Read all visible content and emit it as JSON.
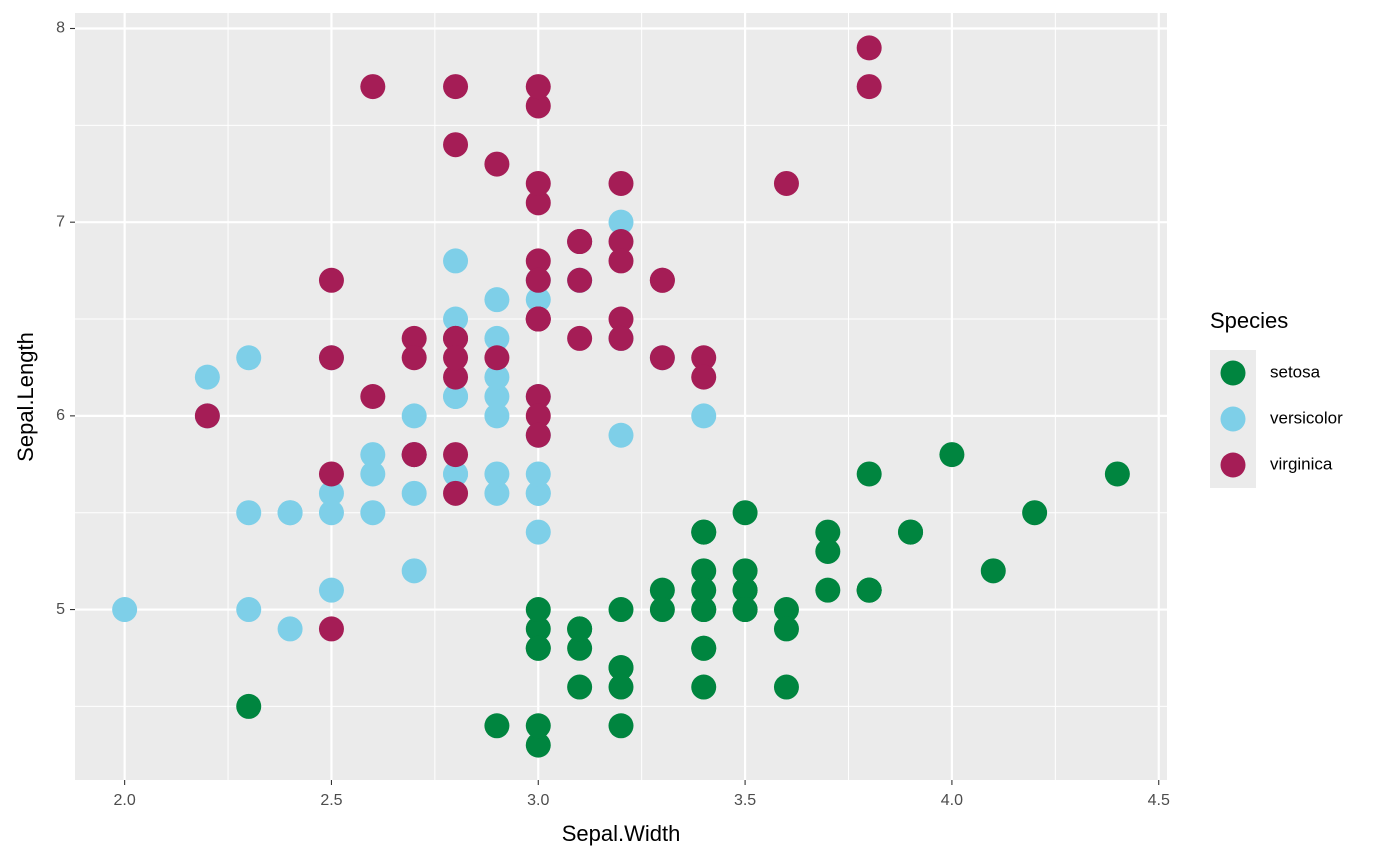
{
  "chart_data": {
    "type": "scatter",
    "x_label": "Sepal.Width",
    "y_label": "Sepal.Length",
    "legend_title": "Species",
    "xlim": [
      1.88,
      4.52
    ],
    "ylim": [
      4.12,
      8.08
    ],
    "xticks": [
      {
        "value": 2,
        "label": "2.0"
      },
      2.5,
      {
        "value": 3,
        "label": "3.0"
      },
      3.5,
      {
        "value": 4,
        "label": "4.0"
      },
      4.5
    ],
    "yticks": [
      5,
      6,
      7,
      8
    ],
    "grid": true,
    "legend": "right",
    "series": [
      {
        "name": "setosa",
        "color": "#00853f",
        "x": [
          3.5,
          3.0,
          3.2,
          3.1,
          3.6,
          3.9,
          3.4,
          3.4,
          2.9,
          3.1,
          3.7,
          3.4,
          3.0,
          3.0,
          4.0,
          4.4,
          3.9,
          3.5,
          3.8,
          3.8,
          3.4,
          3.7,
          3.6,
          3.3,
          3.4,
          3.0,
          3.4,
          3.5,
          3.4,
          3.2,
          3.1,
          3.4,
          4.1,
          4.2,
          3.1,
          3.2,
          3.5,
          3.6,
          3.0,
          3.4,
          3.5,
          2.3,
          3.2,
          3.5,
          3.8,
          3.0,
          3.8,
          3.2,
          3.7,
          3.3
        ],
        "y": [
          5.1,
          4.9,
          4.7,
          4.6,
          5.0,
          5.4,
          4.6,
          5.0,
          4.4,
          4.9,
          5.4,
          4.8,
          4.8,
          4.3,
          5.8,
          5.7,
          5.4,
          5.1,
          5.7,
          5.1,
          5.4,
          5.1,
          4.6,
          5.1,
          4.8,
          5.0,
          5.0,
          5.2,
          5.2,
          4.7,
          4.8,
          5.4,
          5.2,
          5.5,
          4.9,
          5.0,
          5.5,
          4.9,
          4.4,
          5.1,
          5.0,
          4.5,
          4.4,
          5.0,
          5.1,
          4.8,
          5.1,
          4.6,
          5.3,
          5.0
        ]
      },
      {
        "name": "versicolor",
        "color": "#7ecfe8",
        "x": [
          3.2,
          3.2,
          3.1,
          2.3,
          2.8,
          2.8,
          3.3,
          2.4,
          2.9,
          2.7,
          2.0,
          3.0,
          2.2,
          2.9,
          2.9,
          3.1,
          3.0,
          2.7,
          2.2,
          2.5,
          3.2,
          2.8,
          2.5,
          2.8,
          2.9,
          3.0,
          2.8,
          3.0,
          2.9,
          2.6,
          2.4,
          2.4,
          2.7,
          2.7,
          3.0,
          3.4,
          3.1,
          2.3,
          3.0,
          2.5,
          2.6,
          3.0,
          2.6,
          2.3,
          2.7,
          3.0,
          2.9,
          2.9,
          2.5,
          2.8
        ],
        "y": [
          7.0,
          6.4,
          6.9,
          5.5,
          6.5,
          5.7,
          6.3,
          4.9,
          6.6,
          5.2,
          5.0,
          5.9,
          6.0,
          6.1,
          5.6,
          6.7,
          5.6,
          5.8,
          6.2,
          5.6,
          5.9,
          6.1,
          6.3,
          6.1,
          6.4,
          6.6,
          6.8,
          6.7,
          6.0,
          5.7,
          5.5,
          5.5,
          5.8,
          6.0,
          5.4,
          6.0,
          6.7,
          6.3,
          5.6,
          5.5,
          5.5,
          6.1,
          5.8,
          5.0,
          5.6,
          5.7,
          5.7,
          6.2,
          5.1,
          5.7
        ]
      },
      {
        "name": "virginica",
        "color": "#a51d56",
        "x": [
          3.3,
          2.7,
          3.0,
          2.9,
          3.0,
          3.0,
          2.5,
          2.9,
          2.5,
          3.6,
          3.2,
          2.7,
          3.0,
          2.5,
          2.8,
          3.2,
          3.0,
          3.8,
          2.6,
          2.2,
          3.2,
          2.8,
          2.8,
          2.7,
          3.3,
          3.2,
          2.8,
          3.0,
          2.8,
          3.0,
          2.8,
          3.8,
          2.8,
          2.8,
          2.6,
          3.0,
          3.4,
          3.1,
          3.0,
          3.1,
          3.1,
          3.1,
          2.7,
          3.2,
          3.3,
          3.0,
          2.5,
          3.0,
          3.4,
          3.0
        ],
        "y": [
          6.3,
          5.8,
          7.1,
          6.3,
          6.5,
          7.6,
          4.9,
          7.3,
          6.7,
          7.2,
          6.5,
          6.4,
          6.8,
          5.7,
          5.8,
          6.4,
          6.5,
          7.7,
          7.7,
          6.0,
          6.9,
          5.6,
          7.7,
          6.3,
          6.7,
          7.2,
          6.2,
          6.1,
          6.4,
          7.2,
          7.4,
          7.9,
          6.4,
          6.3,
          6.1,
          7.7,
          6.3,
          6.4,
          6.0,
          6.9,
          6.7,
          6.9,
          5.8,
          6.8,
          6.7,
          6.7,
          6.3,
          6.5,
          6.2,
          5.9
        ]
      }
    ]
  }
}
